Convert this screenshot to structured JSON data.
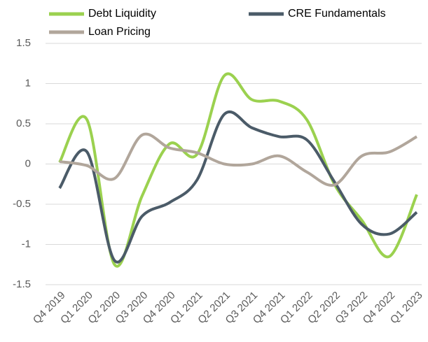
{
  "chart_data": {
    "type": "line",
    "categories": [
      "Q4 2019",
      "Q1 2020",
      "Q2 2020",
      "Q3 2020",
      "Q4 2020",
      "Q1 2021",
      "Q2 2021",
      "Q3 2021",
      "Q4 2021",
      "Q1 2022",
      "Q2 2022",
      "Q3 2022",
      "Q4 2022",
      "Q1 2023"
    ],
    "series": [
      {
        "name": "Debt Liquidity",
        "color": "#9bd14f",
        "values": [
          0.02,
          0.55,
          -1.25,
          -0.4,
          0.25,
          0.12,
          1.1,
          0.8,
          0.78,
          0.55,
          -0.25,
          -0.7,
          -1.15,
          -0.38
        ]
      },
      {
        "name": "CRE Fundamentals",
        "color": "#4b5b68",
        "values": [
          -0.3,
          0.15,
          -1.2,
          -0.65,
          -0.48,
          -0.2,
          0.62,
          0.45,
          0.34,
          0.3,
          -0.22,
          -0.75,
          -0.87,
          -0.6
        ]
      },
      {
        "name": "Loan Pricing",
        "color": "#b1a69b",
        "values": [
          0.03,
          -0.02,
          -0.18,
          0.36,
          0.2,
          0.14,
          0.0,
          0.0,
          0.1,
          -0.1,
          -0.26,
          0.1,
          0.15,
          0.34
        ]
      }
    ],
    "ylim": [
      -1.5,
      1.5
    ],
    "yticks": [
      1.5,
      1,
      0.5,
      0,
      -0.5,
      -1,
      -1.5
    ],
    "grid": true,
    "smooth": true
  }
}
